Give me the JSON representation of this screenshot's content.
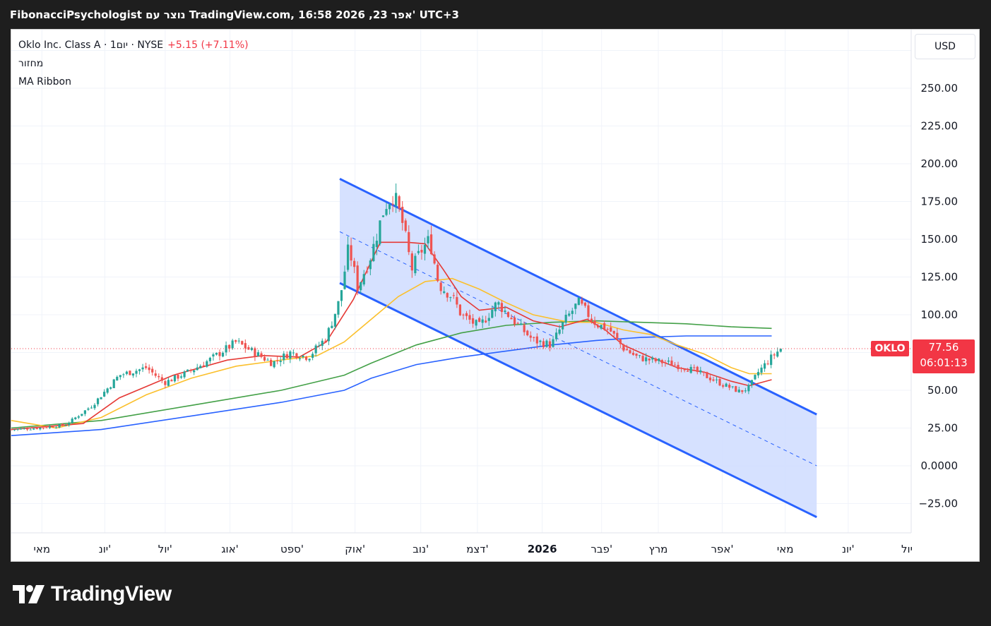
{
  "header": {
    "title": "FibonacciPsychologist נוצר עם TradingView.com, 16:58 2026 ,23 אפר' UTC+3"
  },
  "legend": {
    "symbol_line": "Oklo Inc. Class A · 1יום · NYSE",
    "change": "+5.15 (+7.11%)",
    "volume_label": "מחזור",
    "indicator_label": "MA Ribbon"
  },
  "currency_button": "USD",
  "symbol_tag": "OKLO",
  "last_price": "77.56",
  "countdown": "06:01:13",
  "brand": {
    "name": "TradingView"
  },
  "colors": {
    "up": "#26a69a",
    "down": "#ef5350",
    "price_line": "#f23645",
    "ma_fast": "#2962ff",
    "ma_mid": "#43a047",
    "ma_slow": "#fbc02d",
    "ma_long": "#e53935",
    "channel": "#2962ff",
    "channel_fill": "#cfdcff"
  },
  "chart_data": {
    "type": "candlestick",
    "y_axis_ticks": [
      "250.00",
      "225.00",
      "200.00",
      "175.00",
      "150.00",
      "125.00",
      "100.00",
      "50.00",
      "25.00",
      "0.0000",
      "−25.00"
    ],
    "y_axis_values": [
      250,
      225,
      200,
      175,
      150,
      125,
      100,
      50,
      25,
      0,
      -25
    ],
    "x_axis_ticks": [
      "מאי",
      "יונ'",
      "יול'",
      "אוג'",
      "ספט'",
      "אוק'",
      "נוב'",
      "דצמ'",
      "2026",
      "פבר'",
      "מרץ",
      "אפר'",
      "מאי",
      "יונ'",
      "יול"
    ],
    "ylim": [
      -35,
      295
    ],
    "last_price": 77.56,
    "close_path": [
      [
        0,
        24
      ],
      [
        0.03,
        25
      ],
      [
        0.06,
        27
      ],
      [
        0.09,
        40
      ],
      [
        0.12,
        60
      ],
      [
        0.15,
        65
      ],
      [
        0.17,
        55
      ],
      [
        0.2,
        63
      ],
      [
        0.22,
        70
      ],
      [
        0.25,
        82
      ],
      [
        0.27,
        75
      ],
      [
        0.29,
        68
      ],
      [
        0.31,
        75
      ],
      [
        0.33,
        72
      ],
      [
        0.35,
        85
      ],
      [
        0.365,
        110
      ],
      [
        0.375,
        145
      ],
      [
        0.385,
        118
      ],
      [
        0.4,
        140
      ],
      [
        0.415,
        172
      ],
      [
        0.425,
        180
      ],
      [
        0.435,
        160
      ],
      [
        0.445,
        130
      ],
      [
        0.455,
        142
      ],
      [
        0.465,
        150
      ],
      [
        0.475,
        120
      ],
      [
        0.49,
        112
      ],
      [
        0.5,
        100
      ],
      [
        0.52,
        92
      ],
      [
        0.54,
        108
      ],
      [
        0.56,
        95
      ],
      [
        0.58,
        83
      ],
      [
        0.6,
        80
      ],
      [
        0.615,
        96
      ],
      [
        0.63,
        108
      ],
      [
        0.65,
        94
      ],
      [
        0.665,
        90
      ],
      [
        0.68,
        78
      ],
      [
        0.695,
        72
      ],
      [
        0.71,
        70
      ],
      [
        0.73,
        68
      ],
      [
        0.75,
        65
      ],
      [
        0.77,
        60
      ],
      [
        0.79,
        54
      ],
      [
        0.81,
        49
      ],
      [
        0.82,
        52
      ],
      [
        0.83,
        62
      ],
      [
        0.845,
        72
      ],
      [
        0.855,
        77.56
      ]
    ],
    "moving_averages": [
      {
        "points": [
          [
            0,
            24
          ],
          [
            0.08,
            28
          ],
          [
            0.12,
            45
          ],
          [
            0.18,
            60
          ],
          [
            0.24,
            70
          ],
          [
            0.28,
            73
          ],
          [
            0.32,
            72
          ],
          [
            0.35,
            82
          ],
          [
            0.38,
            110
          ],
          [
            0.41,
            148
          ],
          [
            0.44,
            148
          ],
          [
            0.46,
            147
          ],
          [
            0.48,
            130
          ],
          [
            0.5,
            112
          ],
          [
            0.52,
            103
          ],
          [
            0.55,
            105
          ],
          [
            0.58,
            96
          ],
          [
            0.61,
            92
          ],
          [
            0.64,
            97
          ],
          [
            0.66,
            90
          ],
          [
            0.68,
            80
          ],
          [
            0.71,
            72
          ],
          [
            0.74,
            65
          ],
          [
            0.77,
            62
          ],
          [
            0.8,
            56
          ],
          [
            0.82,
            53
          ],
          [
            0.845,
            57
          ]
        ]
      },
      {
        "points": [
          [
            0,
            30
          ],
          [
            0.05,
            25
          ],
          [
            0.1,
            32
          ],
          [
            0.15,
            47
          ],
          [
            0.2,
            58
          ],
          [
            0.25,
            66
          ],
          [
            0.3,
            70
          ],
          [
            0.34,
            73
          ],
          [
            0.37,
            82
          ],
          [
            0.4,
            97
          ],
          [
            0.43,
            112
          ],
          [
            0.46,
            122
          ],
          [
            0.49,
            124
          ],
          [
            0.52,
            117
          ],
          [
            0.55,
            108
          ],
          [
            0.58,
            100
          ],
          [
            0.62,
            95
          ],
          [
            0.65,
            95
          ],
          [
            0.68,
            90
          ],
          [
            0.71,
            87
          ],
          [
            0.74,
            80
          ],
          [
            0.77,
            74
          ],
          [
            0.8,
            65
          ],
          [
            0.82,
            61
          ],
          [
            0.845,
            61
          ]
        ]
      },
      {
        "points": [
          [
            0,
            25
          ],
          [
            0.1,
            30
          ],
          [
            0.2,
            40
          ],
          [
            0.3,
            50
          ],
          [
            0.37,
            60
          ],
          [
            0.4,
            68
          ],
          [
            0.45,
            80
          ],
          [
            0.5,
            88
          ],
          [
            0.55,
            93
          ],
          [
            0.6,
            95
          ],
          [
            0.65,
            96
          ],
          [
            0.7,
            95
          ],
          [
            0.75,
            94
          ],
          [
            0.8,
            92
          ],
          [
            0.845,
            91
          ]
        ]
      },
      {
        "points": [
          [
            0,
            20
          ],
          [
            0.1,
            24
          ],
          [
            0.2,
            33
          ],
          [
            0.3,
            42
          ],
          [
            0.37,
            50
          ],
          [
            0.4,
            58
          ],
          [
            0.45,
            67
          ],
          [
            0.5,
            72
          ],
          [
            0.55,
            76
          ],
          [
            0.6,
            80
          ],
          [
            0.65,
            83
          ],
          [
            0.7,
            85
          ],
          [
            0.75,
            86
          ],
          [
            0.8,
            86
          ],
          [
            0.845,
            86
          ]
        ]
      }
    ],
    "channel": {
      "upper": [
        [
          0.365,
          190
        ],
        [
          0.895,
          34
        ]
      ],
      "middle": [
        [
          0.365,
          155
        ],
        [
          0.895,
          0
        ]
      ],
      "lower": [
        [
          0.365,
          121
        ],
        [
          0.895,
          -34
        ]
      ]
    }
  }
}
